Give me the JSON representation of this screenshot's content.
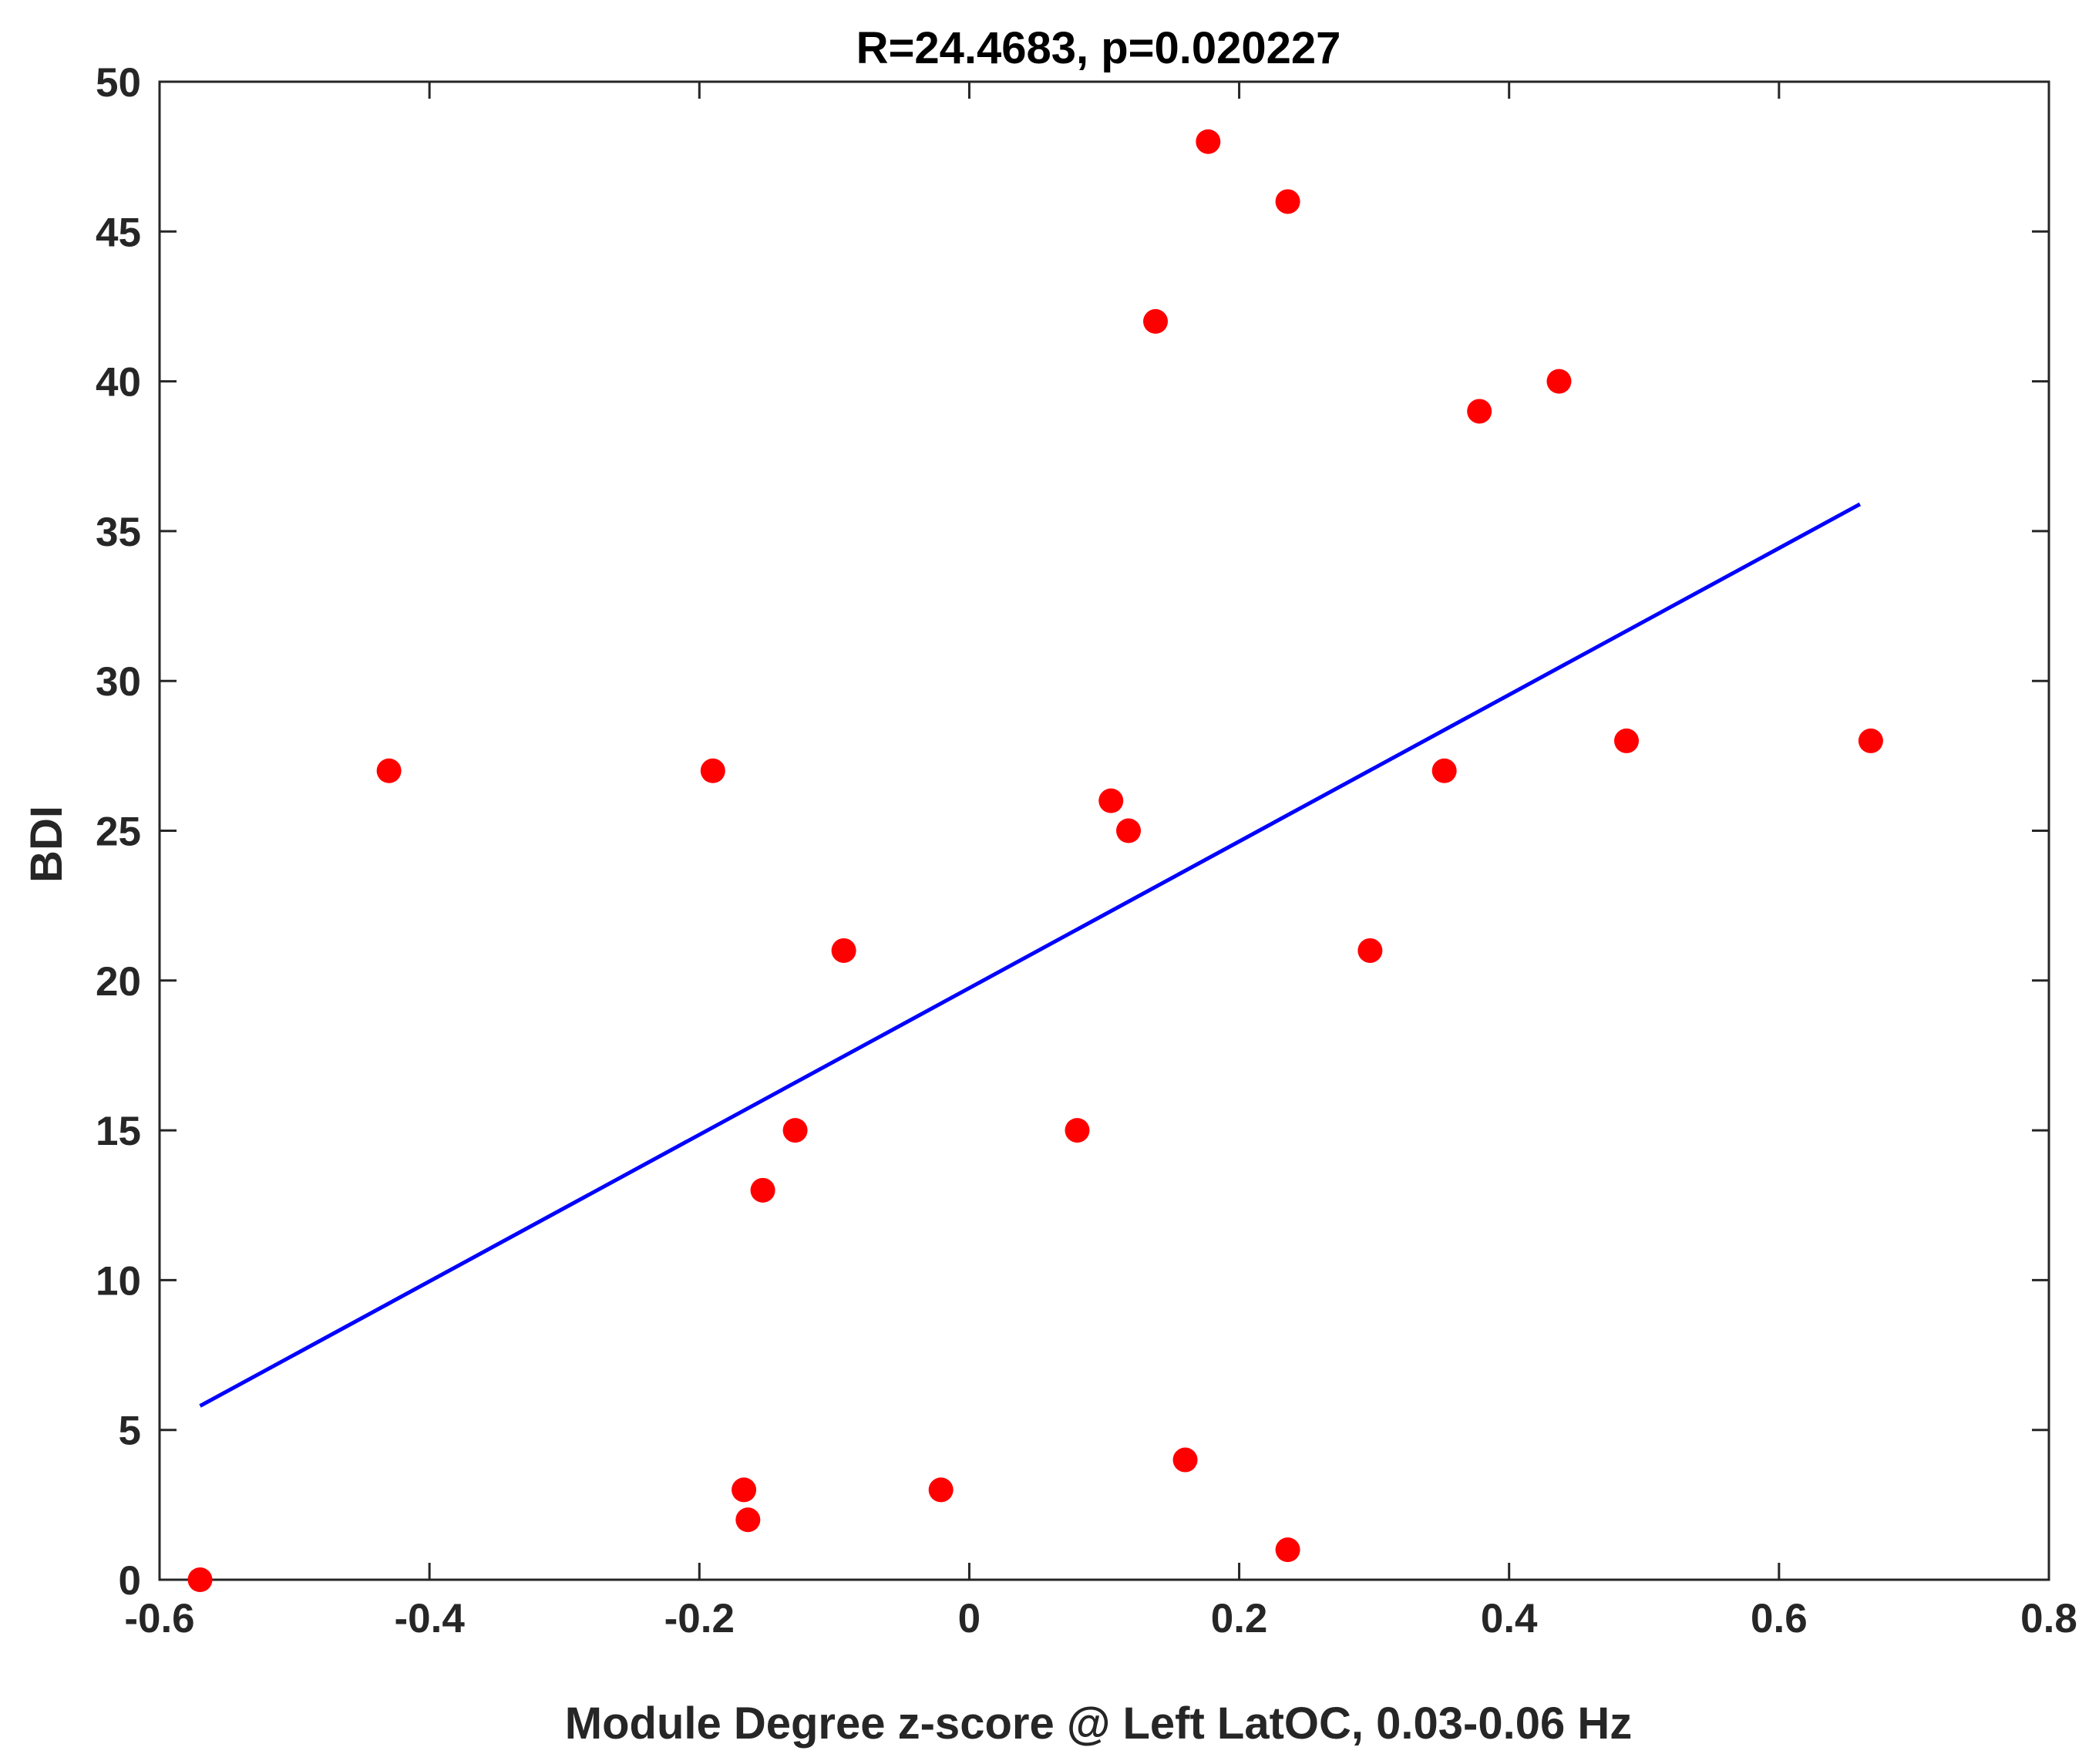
{
  "chart_data": {
    "type": "scatter",
    "title": "R=24.4683, p=0.020227",
    "xlabel": "Module Degree z-score @ Left LatOC, 0.03-0.06 Hz",
    "ylabel": "BDI",
    "xlim": [
      -0.6,
      0.8
    ],
    "ylim": [
      0,
      50
    ],
    "xticks": [
      -0.6,
      -0.4,
      -0.2,
      0,
      0.2,
      0.4,
      0.6,
      0.8
    ],
    "xtick_labels": [
      "-0.6",
      "-0.4",
      "-0.2",
      "0",
      "0.2",
      "0.4",
      "0.6",
      "0.8"
    ],
    "yticks": [
      0,
      5,
      10,
      15,
      20,
      25,
      30,
      35,
      40,
      45,
      50
    ],
    "ytick_labels": [
      "0",
      "5",
      "10",
      "15",
      "20",
      "25",
      "30",
      "35",
      "40",
      "45",
      "50"
    ],
    "grid": false,
    "series": [
      {
        "kind": "scatter",
        "color": "#ff0000",
        "points": [
          {
            "x": -0.57,
            "y": 0
          },
          {
            "x": -0.43,
            "y": 27
          },
          {
            "x": -0.19,
            "y": 27
          },
          {
            "x": -0.167,
            "y": 3
          },
          {
            "x": -0.164,
            "y": 2
          },
          {
            "x": -0.153,
            "y": 13
          },
          {
            "x": -0.129,
            "y": 15
          },
          {
            "x": -0.093,
            "y": 21
          },
          {
            "x": -0.021,
            "y": 3
          },
          {
            "x": 0.08,
            "y": 15
          },
          {
            "x": 0.105,
            "y": 26
          },
          {
            "x": 0.118,
            "y": 25
          },
          {
            "x": 0.138,
            "y": 42
          },
          {
            "x": 0.16,
            "y": 4
          },
          {
            "x": 0.177,
            "y": 48
          },
          {
            "x": 0.236,
            "y": 46
          },
          {
            "x": 0.236,
            "y": 1
          },
          {
            "x": 0.297,
            "y": 21
          },
          {
            "x": 0.352,
            "y": 27
          },
          {
            "x": 0.378,
            "y": 39
          },
          {
            "x": 0.437,
            "y": 40
          },
          {
            "x": 0.487,
            "y": 28
          },
          {
            "x": 0.668,
            "y": 28
          }
        ]
      },
      {
        "kind": "line",
        "color": "#0000ff",
        "points": [
          {
            "x": -0.57,
            "y": 5.8
          },
          {
            "x": 0.66,
            "y": 35.9
          }
        ]
      }
    ]
  }
}
